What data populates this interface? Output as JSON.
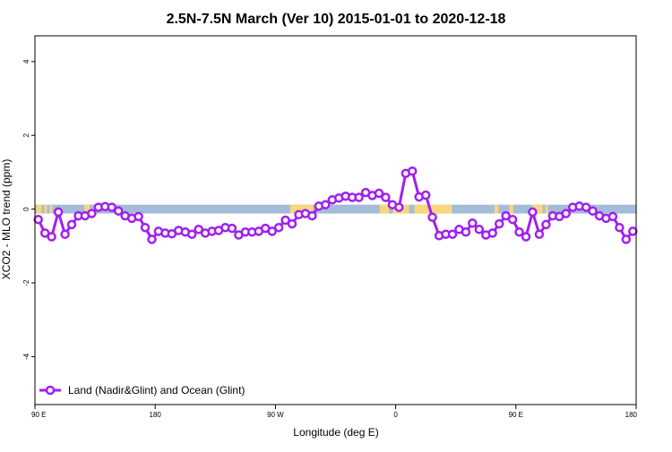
{
  "chart_data": {
    "type": "line",
    "title": "2.5N-7.5N March (Ver 10)   2015-01-01 to 2020-12-18",
    "xlabel": "Longitude (deg E)",
    "ylabel": "XCO2 - MLO trend (ppm)",
    "xlim": [
      90,
      540
    ],
    "ylim": [
      -5.3,
      4.7
    ],
    "x_ticks": [
      {
        "value": 90,
        "label": "90 E"
      },
      {
        "value": 180,
        "label": "180"
      },
      {
        "value": 270,
        "label": "90 W"
      },
      {
        "value": 360,
        "label": "0"
      },
      {
        "value": 450,
        "label": "90 E"
      },
      {
        "value": 540,
        "label": "180"
      }
    ],
    "y_ticks": [
      {
        "value": -4,
        "label": "-4"
      },
      {
        "value": -2,
        "label": "-2"
      },
      {
        "value": 0,
        "label": "0"
      },
      {
        "value": 2,
        "label": "2"
      },
      {
        "value": 4,
        "label": "4"
      }
    ],
    "grid": false,
    "legend_position": "bottom-left",
    "colors": {
      "series": "#a020f0",
      "ocean_band": "#a3bcd9",
      "land_band": "#f8d77c"
    },
    "band": {
      "y_range": [
        -0.12,
        0.12
      ],
      "land_segments": [
        [
          91,
          95
        ],
        [
          97,
          99
        ],
        [
          101,
          103
        ],
        [
          127,
          131
        ],
        [
          281,
          298
        ],
        [
          348,
          355
        ],
        [
          358,
          370
        ],
        [
          374,
          402
        ],
        [
          434,
          437
        ],
        [
          445,
          448
        ],
        [
          462,
          470
        ],
        [
          472,
          474
        ]
      ]
    },
    "series": [
      {
        "name": "Land (Nadir&Glint) and Ocean (Glint)",
        "x": [
          92.5,
          97.5,
          102.5,
          107.5,
          112.5,
          117.5,
          122.5,
          127.5,
          132.5,
          137.5,
          142.5,
          147.5,
          152.5,
          157.5,
          162.5,
          167.5,
          172.5,
          177.5,
          182.5,
          187.5,
          192.5,
          197.5,
          202.5,
          207.5,
          212.5,
          217.5,
          222.5,
          227.5,
          232.5,
          237.5,
          242.5,
          247.5,
          252.5,
          257.5,
          262.5,
          267.5,
          272.5,
          277.5,
          282.5,
          287.5,
          292.5,
          297.5,
          302.5,
          307.5,
          312.5,
          317.5,
          322.5,
          327.5,
          332.5,
          337.5,
          342.5,
          347.5,
          352.5,
          357.5,
          362.5,
          367.5,
          372.5,
          377.5,
          382.5,
          387.5,
          392.5,
          397.5,
          402.5,
          407.5,
          412.5,
          417.5,
          422.5,
          427.5,
          432.5,
          437.5,
          442.5,
          447.5,
          452.5,
          457.5,
          462.5,
          467.5,
          472.5,
          477.5,
          482.5,
          487.5,
          492.5,
          497.5,
          502.5,
          507.5,
          512.5,
          517.5,
          522.5,
          527.5,
          532.5,
          537.5
        ],
        "y": [
          -0.28,
          -0.65,
          -0.75,
          -0.08,
          -0.68,
          -0.42,
          -0.18,
          -0.18,
          -0.12,
          0.05,
          0.07,
          0.05,
          -0.05,
          -0.18,
          -0.25,
          -0.2,
          -0.5,
          -0.82,
          -0.6,
          -0.65,
          -0.67,
          -0.58,
          -0.62,
          -0.68,
          -0.55,
          -0.65,
          -0.6,
          -0.58,
          -0.5,
          -0.52,
          -0.7,
          -0.62,
          -0.62,
          -0.6,
          -0.52,
          -0.6,
          -0.5,
          -0.3,
          -0.4,
          -0.15,
          -0.12,
          -0.18,
          0.08,
          0.12,
          0.25,
          0.3,
          0.35,
          0.32,
          0.32,
          0.45,
          0.37,
          0.43,
          0.32,
          0.12,
          0.05,
          0.97,
          1.03,
          0.33,
          0.38,
          -0.22,
          -0.72,
          -0.68,
          -0.68,
          -0.55,
          -0.62,
          -0.38,
          -0.55,
          -0.7,
          -0.65,
          -0.4,
          -0.18,
          -0.28,
          -0.62,
          -0.75,
          -0.08,
          -0.68,
          -0.42,
          -0.18,
          -0.2,
          -0.12,
          0.05,
          0.08,
          0.05,
          -0.05,
          -0.18,
          -0.25,
          -0.2,
          -0.5,
          -0.82,
          -0.6
        ]
      }
    ]
  }
}
